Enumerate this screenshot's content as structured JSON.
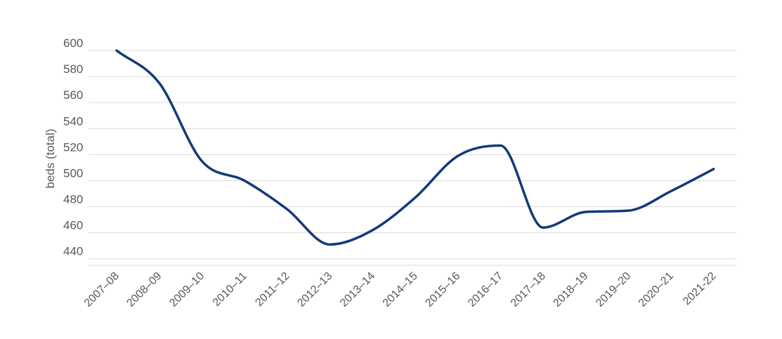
{
  "chart_data": {
    "type": "line",
    "title": "",
    "xlabel": "",
    "ylabel": "beds (total)",
    "categories": [
      "2007–08",
      "2008–09",
      "2009–10",
      "2010–11",
      "2011–12",
      "2012–13",
      "2013–14",
      "2014–15",
      "2015–16",
      "2016–17",
      "2017–18",
      "2018–19",
      "2019–20",
      "2020–21",
      "2021-22"
    ],
    "series": [
      {
        "values": [
          600,
          575,
          515,
          500,
          478,
          451,
          462,
          487,
          519,
          527,
          464,
          476,
          477,
          492,
          509
        ]
      }
    ],
    "y_ticks": [
      600,
      580,
      560,
      540,
      520,
      500,
      480,
      460,
      440
    ],
    "ylim": [
      435,
      600
    ],
    "grid": true,
    "legend": "none",
    "colors": {
      "line": "#123a7a",
      "grid": "#d9d9d9",
      "text": "#595959"
    }
  }
}
